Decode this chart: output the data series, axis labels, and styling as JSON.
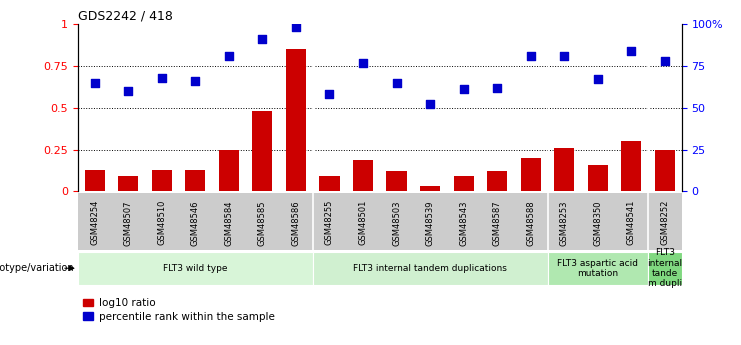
{
  "title": "GDS2242 / 418",
  "samples": [
    "GSM48254",
    "GSM48507",
    "GSM48510",
    "GSM48546",
    "GSM48584",
    "GSM48585",
    "GSM48586",
    "GSM48255",
    "GSM48501",
    "GSM48503",
    "GSM48539",
    "GSM48543",
    "GSM48587",
    "GSM48588",
    "GSM48253",
    "GSM48350",
    "GSM48541",
    "GSM48252"
  ],
  "log10_ratio": [
    0.13,
    0.09,
    0.13,
    0.13,
    0.25,
    0.48,
    0.85,
    0.09,
    0.19,
    0.12,
    0.03,
    0.09,
    0.12,
    0.2,
    0.26,
    0.16,
    0.3,
    0.25
  ],
  "percentile_rank": [
    0.65,
    0.6,
    0.68,
    0.66,
    0.81,
    0.91,
    0.98,
    0.58,
    0.77,
    0.65,
    0.52,
    0.61,
    0.62,
    0.81,
    0.81,
    0.67,
    0.84,
    0.78
  ],
  "bar_color": "#cc0000",
  "dot_color": "#0000cc",
  "sep_indices": [
    6.5,
    13.5,
    16.5
  ],
  "groups": [
    {
      "label": "FLT3 wild type",
      "start": 0,
      "end": 6,
      "color": "#d8f5d8"
    },
    {
      "label": "FLT3 internal tandem duplications",
      "start": 7,
      "end": 13,
      "color": "#d0f0d0"
    },
    {
      "label": "FLT3 aspartic acid\nmutation",
      "start": 14,
      "end": 16,
      "color": "#b0e8b0"
    },
    {
      "label": "FLT3\ninternal\ntande\nm dupli",
      "start": 17,
      "end": 17,
      "color": "#80d880"
    }
  ],
  "tick_bg_color": "#cccccc",
  "ylim_left": [
    0,
    1.0
  ],
  "yticks_left": [
    0,
    0.25,
    0.5,
    0.75,
    1.0
  ],
  "ytick_labels_left": [
    "0",
    "0.25",
    "0.5",
    "0.75",
    "1"
  ],
  "yticks_right": [
    0,
    25,
    50,
    75,
    100
  ],
  "ytick_labels_right": [
    "0",
    "25",
    "50",
    "75",
    "100%"
  ],
  "hlines": [
    0.25,
    0.5,
    0.75
  ],
  "background_color": "#ffffff",
  "legend_items": [
    {
      "label": "log10 ratio",
      "color": "#cc0000"
    },
    {
      "label": "percentile rank within the sample",
      "color": "#0000cc"
    }
  ],
  "genotype_label": "genotype/variation",
  "dot_size": 28
}
